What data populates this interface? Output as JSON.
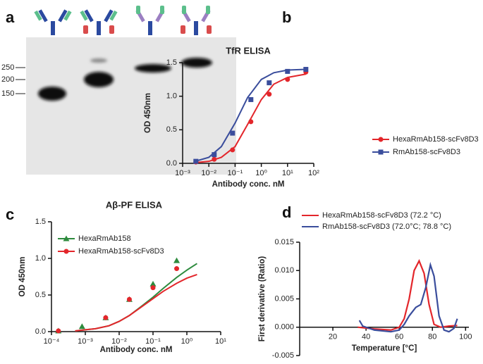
{
  "panel_a": {
    "label": "a",
    "markers": [
      "250",
      "200",
      "150"
    ]
  },
  "chart_data": [
    {
      "type": "scatter",
      "panel_label": "b",
      "title": "TfR ELISA",
      "x_label": "Antibody conc. nM",
      "y_label": "OD 450nm",
      "xscale": "log",
      "xlim": [
        0.001,
        100
      ],
      "ylim": [
        0,
        1.5
      ],
      "xticks": [
        {
          "value": 0.001,
          "label": "10⁻³"
        },
        {
          "value": 0.01,
          "label": "10⁻²"
        },
        {
          "value": 0.1,
          "label": "10⁻¹"
        },
        {
          "value": 1,
          "label": "10⁰"
        },
        {
          "value": 10,
          "label": "10¹"
        },
        {
          "value": 100,
          "label": "10²"
        }
      ],
      "yticks": [
        {
          "value": 0,
          "label": "0.0"
        },
        {
          "value": 0.5,
          "label": "0.5"
        },
        {
          "value": 1,
          "label": "1.0"
        },
        {
          "value": 1.5,
          "label": "1.5"
        }
      ],
      "legend": "lower right",
      "x": [
        0.0032,
        0.016,
        0.08,
        0.4,
        2,
        10,
        50
      ],
      "fit_x": [
        0.003,
        0.01,
        0.03,
        0.1,
        0.3,
        1,
        3,
        10,
        50
      ],
      "series": [
        {
          "name": "HexaRmAb158-scFv8D3",
          "color": "#e3262b",
          "marker": "circle",
          "values": [
            0.02,
            0.06,
            0.2,
            0.62,
            1.03,
            1.25,
            1.36
          ],
          "fit": [
            0.01,
            0.03,
            0.09,
            0.25,
            0.58,
            0.95,
            1.18,
            1.28,
            1.33
          ]
        },
        {
          "name": "RmAb158-scFv8D3",
          "color": "#3a4d9c",
          "marker": "square",
          "values": [
            0.03,
            0.13,
            0.45,
            0.95,
            1.2,
            1.37,
            1.4
          ],
          "fit": [
            0.03,
            0.09,
            0.25,
            0.6,
            0.98,
            1.25,
            1.35,
            1.39,
            1.4
          ]
        }
      ]
    },
    {
      "type": "scatter",
      "panel_label": "c",
      "title": "Aβ-PF ELISA",
      "x_label": "Antibody conc. nM",
      "y_label": "OD 450nm",
      "xscale": "log",
      "xlim": [
        0.0001,
        10
      ],
      "ylim": [
        0,
        1.5
      ],
      "xticks": [
        {
          "value": 0.0001,
          "label": "10⁻⁴"
        },
        {
          "value": 0.001,
          "label": "10⁻³"
        },
        {
          "value": 0.01,
          "label": "10⁻²"
        },
        {
          "value": 0.1,
          "label": "10⁻¹"
        },
        {
          "value": 1,
          "label": "10⁰"
        },
        {
          "value": 10,
          "label": "10¹"
        }
      ],
      "yticks": [
        {
          "value": 0,
          "label": "0.0"
        },
        {
          "value": 0.5,
          "label": "0.5"
        },
        {
          "value": 1,
          "label": "1.0"
        },
        {
          "value": 1.5,
          "label": "1.5"
        }
      ],
      "legend": "upper left",
      "x": [
        0.00016,
        0.0008,
        0.004,
        0.02,
        0.1,
        0.5
      ],
      "fit_x": [
        0.0005,
        0.002,
        0.005,
        0.01,
        0.02,
        0.05,
        0.1,
        0.2,
        0.5,
        1,
        2
      ],
      "series": [
        {
          "name": "HexaRmAb158",
          "color": "#2e8b3e",
          "marker": "triangle",
          "values": [
            0.01,
            0.07,
            0.19,
            0.44,
            0.65,
            0.97
          ],
          "fit": [
            0.01,
            0.04,
            0.08,
            0.14,
            0.22,
            0.36,
            0.47,
            0.59,
            0.74,
            0.84,
            0.93
          ]
        },
        {
          "name": "HexaRmAb158-scFv8D3",
          "color": "#e3262b",
          "marker": "circle",
          "values": [
            0.01,
            null,
            0.19,
            0.44,
            0.6,
            0.86
          ],
          "fit": [
            0.01,
            0.04,
            0.08,
            0.14,
            0.22,
            0.35,
            0.45,
            0.55,
            0.66,
            0.73,
            0.78
          ]
        }
      ]
    },
    {
      "type": "line",
      "panel_label": "d",
      "x_label": "Temperature [°C]",
      "y_label": "First derivative (Ratio)",
      "xlim": [
        0,
        102
      ],
      "ylim": [
        -0.005,
        0.015
      ],
      "xticks": [
        20,
        40,
        60,
        80,
        100
      ],
      "yticks": [
        -0.005,
        {
          "value": 0,
          "label": "0.000"
        },
        0.005,
        {
          "value": 0.01,
          "label": "0.010"
        },
        0.015
      ],
      "legend": "top",
      "series": [
        {
          "name": "HexaRmAb158-scFv8D3 (72.2 °C)",
          "color": "#e3262b",
          "x": [
            35,
            45,
            55,
            60,
            63,
            66,
            69,
            72,
            75,
            78,
            81,
            85,
            90,
            95
          ],
          "values": [
            0,
            -0.0003,
            -0.0005,
            0,
            0.0015,
            0.005,
            0.01,
            0.0117,
            0.0095,
            0.004,
            0.0005,
            0,
            0.0002,
            0.0003
          ]
        },
        {
          "name": "RmAb158-scFv8D3 (72.0°C; 78.8 °C)",
          "color": "#3a4d9c",
          "x": [
            36,
            38,
            45,
            55,
            60,
            63,
            66,
            70,
            73,
            76,
            78.8,
            81,
            84,
            87,
            90,
            93,
            95
          ],
          "values": [
            0.0012,
            0.0002,
            -0.0005,
            -0.0008,
            -0.0005,
            0.0005,
            0.002,
            0.0035,
            0.004,
            0.007,
            0.011,
            0.009,
            0.002,
            -0.0005,
            -0.0008,
            -0.0002,
            0.0015
          ]
        }
      ]
    }
  ]
}
